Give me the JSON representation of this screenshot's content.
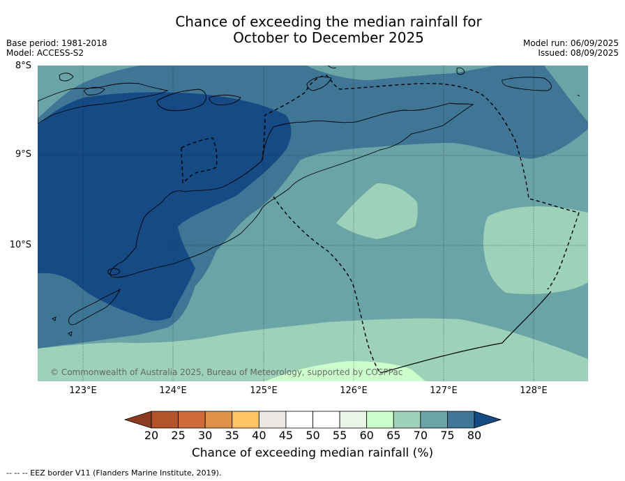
{
  "title": {
    "line1": "Chance of exceeding the median rainfall for",
    "line2": "October to December 2025"
  },
  "meta_left": {
    "base_period": "Base period: 1981-2018",
    "model": "Model: ACCESS-S2"
  },
  "meta_right": {
    "model_run": "Model run: 06/09/2025",
    "issued": "Issued: 08/09/2025"
  },
  "axes": {
    "lat_labels": [
      "8°S",
      "9°S",
      "10°S"
    ],
    "lon_labels": [
      "123°E",
      "124°E",
      "125°E",
      "126°E",
      "127°E",
      "128°E"
    ]
  },
  "colorbar": {
    "ticks": [
      "20",
      "25",
      "30",
      "35",
      "40",
      "45",
      "50",
      "55",
      "60",
      "65",
      "70",
      "75",
      "80"
    ],
    "label": "Chance of exceeding median rainfall (%)",
    "colors": [
      "#8c3a22",
      "#b3532c",
      "#cf6b38",
      "#e0924a",
      "#fdc466",
      "#ebe7e3",
      "#ffffff",
      "#ffffff",
      "#e8f5e8",
      "#ccffcc",
      "#9ed1b9",
      "#6ba4a6",
      "#3f7696",
      "#154a84"
    ]
  },
  "copyright": "© Commonwealth of Australia 2025, Bureau of Meteorology, supported by COSPPac",
  "source_note": "--  --  -- EEZ border V11 (Flanders Marine Institute, 2019).",
  "map_colors": {
    "c60_65": "#ccffcc",
    "c65_70": "#9ed1b9",
    "c70_75": "#6ba4a6",
    "c75_80": "#3f7696",
    "c80": "#154a84"
  }
}
